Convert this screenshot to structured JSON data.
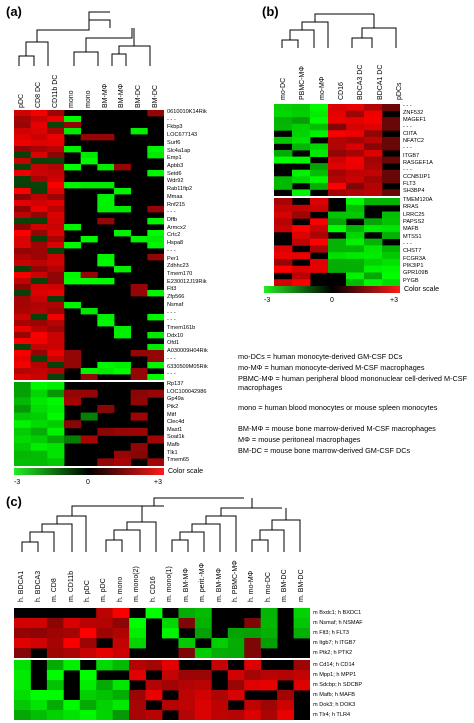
{
  "panels": {
    "a": {
      "letter": "(a)",
      "columns": [
        "pDC",
        "CD8 DC",
        "CD11b DC",
        "mono",
        "mono",
        "BM-MΦ",
        "BM-MΦ",
        "BM-DC",
        "BM-DC"
      ],
      "genes_top": [
        "0610010K14Rik",
        "- - -",
        "Fkbp3",
        "LOC677143",
        "Surf6",
        "Slc4a1ap",
        "Emp1",
        "Apbb3",
        "Setd6",
        "Wdr92",
        "Rab11fip2",
        "Mmaa",
        "Rnf215",
        "- - -",
        "Dffb",
        "Armcx2",
        "Crtc2",
        "Hspa8",
        "- - -",
        "Per1",
        "Zdhhc23",
        "Tmem170",
        "E230012J19Rik",
        "Flt3",
        "Zfp566",
        "Nsmaf",
        "- - -",
        "- - -",
        "Tmem161b",
        "Ddx10",
        "Ofd1",
        "A030009H04Rik",
        "- - -",
        "6330509M05Rik",
        "- - -"
      ],
      "genes_bottom": [
        "Rp137",
        "LOC100042986",
        "Gp49a",
        "Ptk2",
        "Mitf",
        "Clec4d",
        "Mast1",
        "Soat1k",
        "Mafb",
        "Tlk1",
        "Tmem65"
      ],
      "scale": {
        "min": "-3",
        "mid": "0",
        "max": "+3",
        "label": "Color scale"
      }
    },
    "b": {
      "letter": "(b)",
      "columns": [
        "mo-DC",
        "PBMC-MΦ",
        "mo-MΦ",
        "CD16",
        "BDCA3 DC",
        "BDCA1 DC",
        "pDCs"
      ],
      "genes_top": [
        "- - -",
        "ZNF532",
        "MAGEF1",
        "- - -",
        "CIITA",
        "NFATC2",
        "- - -",
        "ITGB7",
        "RASGEF1A",
        "- - -",
        "CCNB1IP1",
        "FLT3",
        "SH3BP4"
      ],
      "genes_bottom": [
        "TMEM120A",
        "RRAS",
        "LRRC25",
        "PAPSS2",
        "MAFB",
        "MTSS1",
        "- - -",
        "CHST7",
        "FCGR3A",
        "PIK3IP1",
        "GPR109B",
        "PYGB"
      ],
      "scale": {
        "min": "-3",
        "mid": "0",
        "max": "+3",
        "label": "Color scale"
      }
    },
    "c": {
      "letter": "(c)",
      "columns": [
        "h. BDCA1",
        "h. BDCA3",
        "m. CD8",
        "m. CD11b",
        "h. pDC",
        "m. pDC",
        "h. mono",
        "m. mono(2)",
        "h. CD16",
        "m. mono(1)",
        "m. BM-MΦ",
        "m. perit.-MΦ",
        "m. BM-MΦ",
        "h. PBMC-MΦ",
        "h. mo-MΦ",
        "h. mo-DC",
        "m. BM-DC",
        "m. BM-DC"
      ],
      "pairs_top": [
        "m Bxdc1; h BXDC1",
        "m Nsmaf; h NSMAF",
        "m Flt3; h FLT3",
        "m Itgb7; h ITGB7",
        "m Ptk2; h PTK2"
      ],
      "pairs_bottom": [
        "m Cd14; h CD14",
        "m Mpp1; h MPP1",
        "m Sdcbp; h SDCBP",
        "m Mafb; h MAFB",
        "m Dok3; h DOK3",
        "m Tlr4; h TLR4"
      ]
    }
  },
  "legend": [
    "mo-DCs = human monocyte-derived GM-CSF DCs",
    "mo-MΦ = human monocyte-derived M-CSF macrophages",
    "PBMC-MΦ = human peripheral blood mononuclear cell-derived M-CSF macrophages",
    "",
    "mono = human blood monocytes or mouse spleen monocytes",
    "",
    "BM-MΦ = mouse bone marrow-derived M-CSF macrophages",
    "MΦ = mouse peritoneal macrophages",
    "BM-DC = mouse bone marrow-derived GM-CSF DCs"
  ],
  "colors": {
    "low": "#22dd22",
    "mid": "#000000",
    "high": "#ff1a1a"
  }
}
